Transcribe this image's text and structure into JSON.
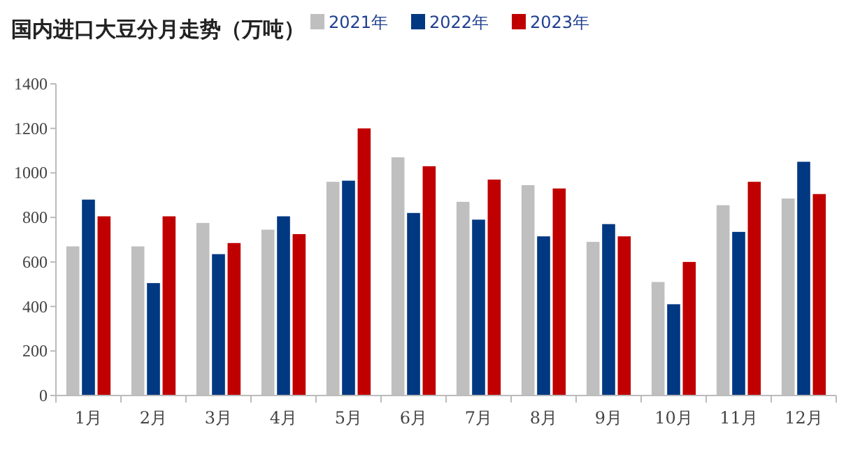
{
  "chart_data": {
    "type": "bar",
    "title": "国内进口大豆分月走势（万吨）",
    "categories": [
      "1月",
      "2月",
      "3月",
      "4月",
      "5月",
      "6月",
      "7月",
      "8月",
      "9月",
      "10月",
      "11月",
      "12月"
    ],
    "series": [
      {
        "name": "2021年",
        "color": "#bfbfbf",
        "values": [
          670,
          670,
          775,
          745,
          960,
          1070,
          870,
          945,
          690,
          510,
          855,
          885
        ]
      },
      {
        "name": "2022年",
        "color": "#003882",
        "values": [
          880,
          505,
          635,
          805,
          965,
          820,
          790,
          715,
          770,
          410,
          735,
          1050
        ]
      },
      {
        "name": "2023年",
        "color": "#c00000",
        "values": [
          805,
          805,
          685,
          725,
          1200,
          1030,
          970,
          930,
          715,
          600,
          960,
          905
        ]
      }
    ],
    "ylim": [
      0,
      1400
    ],
    "yticks": [
      0,
      200,
      400,
      600,
      800,
      1000,
      1200,
      1400
    ],
    "grid": false,
    "legend": "top right"
  }
}
